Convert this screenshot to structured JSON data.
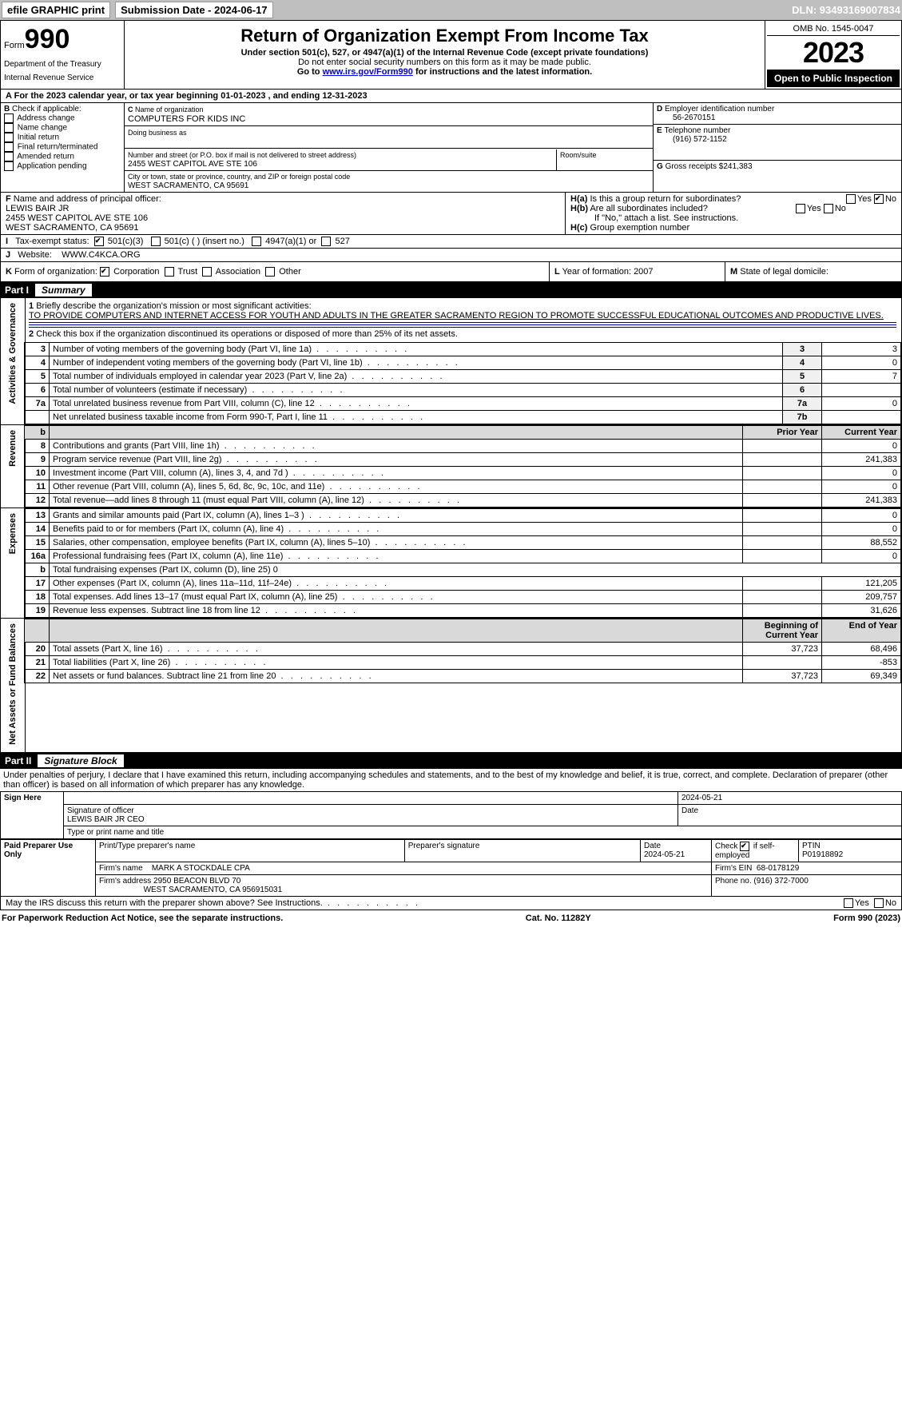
{
  "topbar": {
    "efile": "efile GRAPHIC print",
    "subLabel": "Submission Date - 2024-06-17",
    "dln": "DLN: 93493169007834"
  },
  "header": {
    "form": "Form",
    "num": "990",
    "dept": "Department of the Treasury",
    "irs": "Internal Revenue Service",
    "title": "Return of Organization Exempt From Income Tax",
    "sub": "Under section 501(c), 527, or 4947(a)(1) of the Internal Revenue Code (except private foundations)",
    "note": "Do not enter social security numbers on this form as it may be made public.",
    "goto": "Go to ",
    "gotolink": "www.irs.gov/Form990",
    "gototail": " for instructions and the latest information.",
    "omb": "OMB No. 1545-0047",
    "year": "2023",
    "open": "Open to Public Inspection"
  },
  "A": {
    "text": "For the 2023 calendar year, or tax year beginning 01-01-2023   , and ending 12-31-2023"
  },
  "B": {
    "label": "Check if applicable:",
    "items": [
      "Address change",
      "Name change",
      "Initial return",
      "Final return/terminated",
      "Amended return",
      "Application pending"
    ]
  },
  "C": {
    "nameLbl": "Name of organization",
    "name": "COMPUTERS FOR KIDS INC",
    "dbaLbl": "Doing business as",
    "addrLbl": "Number and street (or P.O. box if mail is not delivered to street address)",
    "roomLbl": "Room/suite",
    "addr": "2455 WEST CAPITOL AVE STE 106",
    "cityLbl": "City or town, state or province, country, and ZIP or foreign postal code",
    "city": "WEST SACRAMENTO, CA  95691"
  },
  "D": {
    "lbl": "Employer identification number",
    "val": "56-2670151"
  },
  "E": {
    "lbl": "Telephone number",
    "val": "(916) 572-1152"
  },
  "G": {
    "lbl": "Gross receipts $",
    "val": "241,383"
  },
  "F": {
    "lbl": "Name and address of principal officer:",
    "name": "LEWIS BAIR JR",
    "addr": "2455 WEST CAPITOL AVE STE 106",
    "city": "WEST SACRAMENTO, CA  95691"
  },
  "H": {
    "a": "Is this a group return for subordinates?",
    "aNo": true,
    "b": "Are all subordinates included?",
    "bnote": "If \"No,\" attach a list. See instructions.",
    "c": "Group exemption number"
  },
  "I": {
    "lbl": "Tax-exempt status:",
    "c1": "501(c)(3)",
    "c2": "501(c) (  ) (insert no.)",
    "c3": "4947(a)(1) or",
    "c4": "527",
    "checked": "c1"
  },
  "J": {
    "lbl": "Website:",
    "val": "WWW.C4KCA.ORG"
  },
  "K": {
    "lbl": "Form of organization:",
    "opts": [
      "Corporation",
      "Trust",
      "Association",
      "Other"
    ],
    "checked": 0
  },
  "L": {
    "lbl": "Year of formation:",
    "val": "2007"
  },
  "M": {
    "lbl": "State of legal domicile:",
    "val": ""
  },
  "part1": {
    "label": "Part I",
    "title": "Summary",
    "line1": {
      "lbl": "Briefly describe the organization's mission or most significant activities:",
      "val": "TO PROVIDE COMPUTERS AND INTERNET ACCESS FOR YOUTH AND ADULTS IN THE GREATER SACRAMENTO REGION TO PROMOTE SUCCESSFUL EDUCATIONAL OUTCOMES AND PRODUCTIVE LIVES."
    },
    "line2": "Check this box      if the organization discontinued its operations or disposed of more than 25% of its net assets.",
    "govRows": [
      {
        "n": "3",
        "d": "Number of voting members of the governing body (Part VI, line 1a)",
        "c": "3",
        "v": "3"
      },
      {
        "n": "4",
        "d": "Number of independent voting members of the governing body (Part VI, line 1b)",
        "c": "4",
        "v": "0"
      },
      {
        "n": "5",
        "d": "Total number of individuals employed in calendar year 2023 (Part V, line 2a)",
        "c": "5",
        "v": "7"
      },
      {
        "n": "6",
        "d": "Total number of volunteers (estimate if necessary)",
        "c": "6",
        "v": ""
      },
      {
        "n": "7a",
        "d": "Total unrelated business revenue from Part VIII, column (C), line 12",
        "c": "7a",
        "v": "0"
      },
      {
        "n": "",
        "d": "Net unrelated business taxable income from Form 990-T, Part I, line 11",
        "c": "7b",
        "v": ""
      }
    ],
    "revHeader": {
      "prior": "Prior Year",
      "curr": "Current Year"
    },
    "revRows": [
      {
        "n": "8",
        "d": "Contributions and grants (Part VIII, line 1h)",
        "p": "",
        "c": "0"
      },
      {
        "n": "9",
        "d": "Program service revenue (Part VIII, line 2g)",
        "p": "",
        "c": "241,383"
      },
      {
        "n": "10",
        "d": "Investment income (Part VIII, column (A), lines 3, 4, and 7d )",
        "p": "",
        "c": "0"
      },
      {
        "n": "11",
        "d": "Other revenue (Part VIII, column (A), lines 5, 6d, 8c, 9c, 10c, and 11e)",
        "p": "",
        "c": "0"
      },
      {
        "n": "12",
        "d": "Total revenue—add lines 8 through 11 (must equal Part VIII, column (A), line 12)",
        "p": "",
        "c": "241,383"
      }
    ],
    "expRows": [
      {
        "n": "13",
        "d": "Grants and similar amounts paid (Part IX, column (A), lines 1–3 )",
        "p": "",
        "c": "0"
      },
      {
        "n": "14",
        "d": "Benefits paid to or for members (Part IX, column (A), line 4)",
        "p": "",
        "c": "0"
      },
      {
        "n": "15",
        "d": "Salaries, other compensation, employee benefits (Part IX, column (A), lines 5–10)",
        "p": "",
        "c": "88,552"
      },
      {
        "n": "16a",
        "d": "Professional fundraising fees (Part IX, column (A), line 11e)",
        "p": "",
        "c": "0"
      },
      {
        "n": "b",
        "d": "Total fundraising expenses (Part IX, column (D), line 25) 0",
        "p": null,
        "c": null
      },
      {
        "n": "17",
        "d": "Other expenses (Part IX, column (A), lines 11a–11d, 11f–24e)",
        "p": "",
        "c": "121,205"
      },
      {
        "n": "18",
        "d": "Total expenses. Add lines 13–17 (must equal Part IX, column (A), line 25)",
        "p": "",
        "c": "209,757"
      },
      {
        "n": "19",
        "d": "Revenue less expenses. Subtract line 18 from line 12",
        "p": "",
        "c": "31,626"
      }
    ],
    "netHeader": {
      "b": "Beginning of Current Year",
      "e": "End of Year"
    },
    "netRows": [
      {
        "n": "20",
        "d": "Total assets (Part X, line 16)",
        "p": "37,723",
        "c": "68,496"
      },
      {
        "n": "21",
        "d": "Total liabilities (Part X, line 26)",
        "p": "",
        "c": "-853"
      },
      {
        "n": "22",
        "d": "Net assets or fund balances. Subtract line 21 from line 20",
        "p": "37,723",
        "c": "69,349"
      }
    ]
  },
  "sides": {
    "gov": "Activities & Governance",
    "rev": "Revenue",
    "exp": "Expenses",
    "net": "Net Assets or Fund Balances"
  },
  "part2": {
    "label": "Part II",
    "title": "Signature Block",
    "decl": "Under penalties of perjury, I declare that I have examined this return, including accompanying schedules and statements, and to the best of my knowledge and belief, it is true, correct, and complete. Declaration of preparer (other than officer) is based on all information of which preparer has any knowledge."
  },
  "sign": {
    "here": "Sign Here",
    "sigof": "Signature of officer",
    "date": "Date",
    "dval": "2024-05-21",
    "name": "LEWIS BAIR JR CEO",
    "typeLbl": "Type or print name and title"
  },
  "paid": {
    "label": "Paid Preparer Use Only",
    "pname": "Print/Type preparer's name",
    "psig": "Preparer's signature",
    "pdate": "Date",
    "pdval": "2024-05-21",
    "check": "Check",
    "if": "if self-employed",
    "ptin": "PTIN",
    "ptinval": "P01918892",
    "firmname": "Firm's name",
    "firm": "MARK A STOCKDALE CPA",
    "ein": "Firm's EIN",
    "einval": "68-0178129",
    "firmaddr": "Firm's address",
    "addr": "2950 BEACON BLVD 70",
    "city": "WEST SACRAMENTO, CA  956915031",
    "phone": "Phone no.",
    "phoneval": "(916) 372-7000"
  },
  "discuss": "May the IRS discuss this return with the preparer shown above? See Instructions.",
  "footer": {
    "l": "For Paperwork Reduction Act Notice, see the separate instructions.",
    "m": "Cat. No. 11282Y",
    "r": "Form 990 (2023)"
  }
}
